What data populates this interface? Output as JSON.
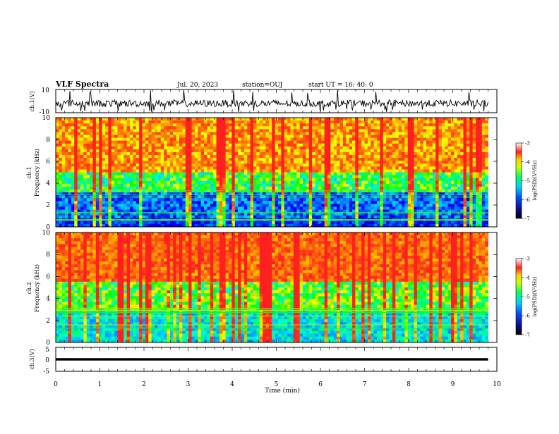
{
  "header": {
    "title": "VLF Spectra",
    "date": "Jul. 20, 2023",
    "station": "station=OUJ",
    "start": "start UT =  16: 40: 0"
  },
  "chart_data": [
    {
      "type": "line",
      "ylabel": "ch.1(V)",
      "ylim": [
        -10,
        10
      ],
      "yticks": [
        "10",
        "-10"
      ],
      "xlim": [
        0,
        10
      ],
      "description_values": {
        "baseline": -2,
        "noise_amplitude": 3
      }
    },
    {
      "type": "heatmap",
      "ylabel_line1": "ch.1",
      "ylabel_line2": "Frequency (kHz)",
      "xlim": [
        0,
        10
      ],
      "ylim": [
        0,
        10
      ],
      "yticks": [
        "0",
        "2",
        "4",
        "6",
        "8",
        "10"
      ],
      "colorbar": {
        "label": "log(PSD)(V²/Hz)",
        "ticks": [
          "-3",
          "-4",
          "-5",
          "-6",
          "-7"
        ],
        "range": [
          -7,
          -3
        ]
      }
    },
    {
      "type": "heatmap",
      "ylabel_line1": "ch.2",
      "ylabel_line2": "Frequency (kHz)",
      "xlim": [
        0,
        10
      ],
      "ylim": [
        0,
        10
      ],
      "yticks": [
        "0",
        "2",
        "4",
        "6",
        "8",
        "10"
      ],
      "colorbar": {
        "label": "log(PSD)(V²/Hz)",
        "ticks": [
          "-3",
          "-4",
          "-5",
          "-6",
          "-7"
        ],
        "range": [
          -7,
          -3
        ]
      }
    },
    {
      "type": "line",
      "ylabel": "ch.3(V)",
      "ylim": [
        -5,
        5
      ],
      "yticks": [
        "5",
        "0",
        "-5"
      ],
      "xlim": [
        0,
        10
      ],
      "x": [
        0,
        9.8
      ],
      "y": [
        0,
        0
      ]
    }
  ],
  "xaxis": {
    "label": "Time (min)",
    "ticks": [
      "0",
      "1",
      "2",
      "3",
      "4",
      "5",
      "6",
      "7",
      "8",
      "9",
      "10"
    ]
  },
  "colors": {
    "spectrum": [
      "#0a0a78",
      "#0000ff",
      "#00b4ff",
      "#00ffc8",
      "#00ff00",
      "#ffff00",
      "#ff8c00",
      "#ff2020"
    ]
  }
}
